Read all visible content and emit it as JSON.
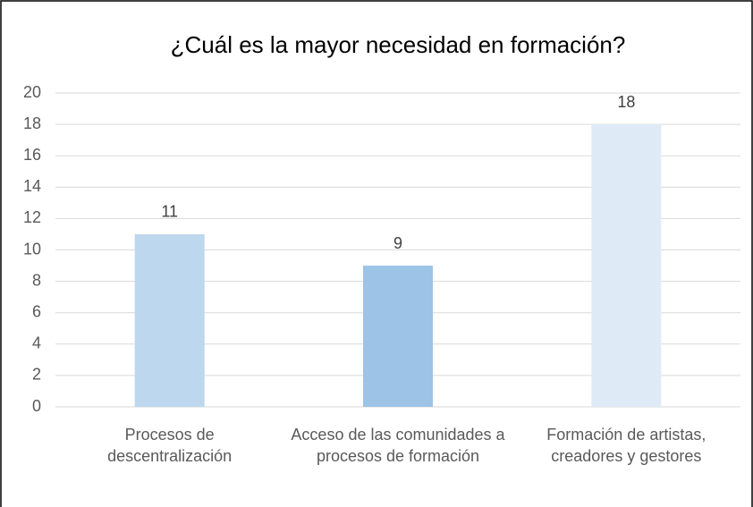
{
  "chart_data": {
    "type": "bar",
    "title": "¿Cuál es la mayor necesidad en formación?",
    "categories": [
      "Procesos de descentralización",
      "Acceso de las comunidades a procesos de formación",
      "Formación de artistas, creadores y gestores"
    ],
    "values": [
      11,
      9,
      18
    ],
    "colors": [
      "#bdd7ee",
      "#9dc3e6",
      "#deebf7"
    ],
    "ylim": [
      0,
      20
    ],
    "yticks": [
      0,
      2,
      4,
      6,
      8,
      10,
      12,
      14,
      16,
      18,
      20
    ],
    "grid": true
  }
}
